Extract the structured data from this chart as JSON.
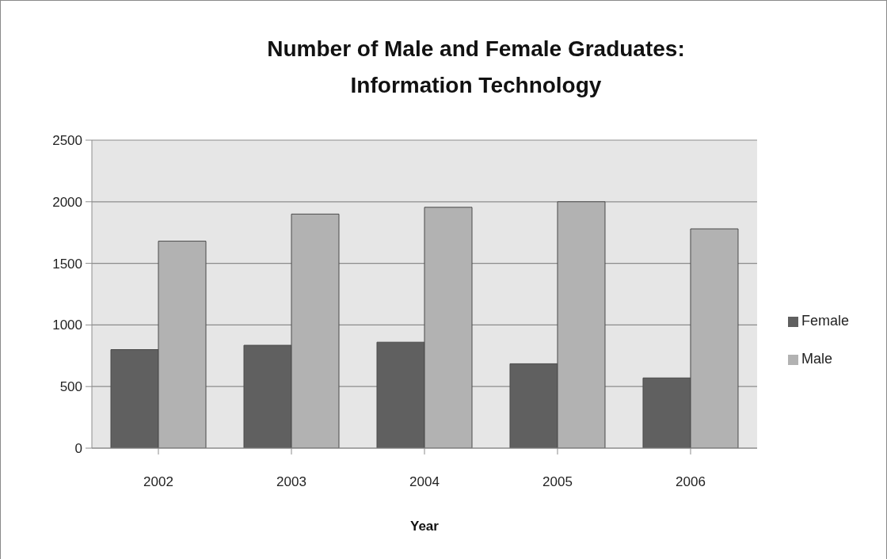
{
  "chart_data": {
    "type": "bar",
    "title": "Number of Male and Female Graduates: Information Technology",
    "xlabel": "Year",
    "categories": [
      "2002",
      "2003",
      "2004",
      "2005",
      "2006"
    ],
    "series": [
      {
        "name": "Female",
        "color": "#606060",
        "values": [
          800,
          835,
          860,
          685,
          570
        ]
      },
      {
        "name": "Male",
        "color": "#b2b2b2",
        "values": [
          1680,
          1900,
          1955,
          2000,
          1780
        ]
      }
    ],
    "ylim": [
      0,
      2500
    ],
    "yticks": [
      0,
      500,
      1000,
      1500,
      2000,
      2500
    ],
    "grid": "y",
    "legend": "right"
  }
}
